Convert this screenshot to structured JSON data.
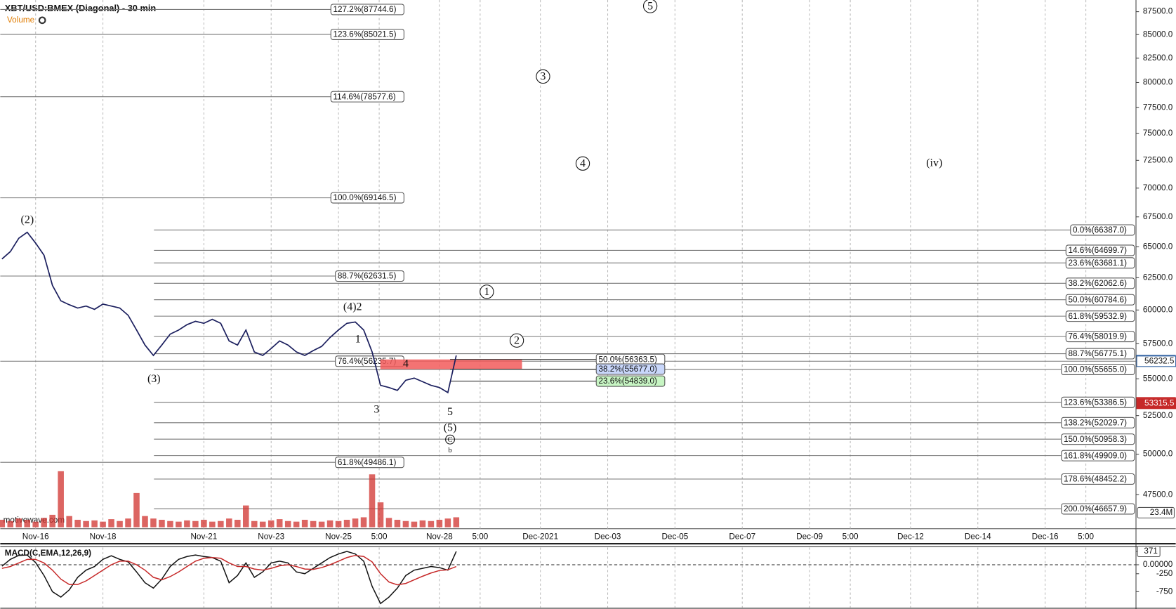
{
  "header": {
    "title": "XBT/USD:BMEX (Diagonal) - 30 min",
    "watermark": "motivewave.com"
  },
  "chart_data": [
    {
      "type": "line",
      "color": "#1b1f5e",
      "log_scale": true,
      "x": [
        15,
        15.25,
        15.5,
        15.75,
        16,
        16.25,
        16.5,
        16.75,
        17,
        17.25,
        17.5,
        17.75,
        18,
        18.25,
        18.5,
        18.75,
        19,
        19.25,
        19.5,
        19.75,
        20,
        20.25,
        20.5,
        20.75,
        21,
        21.25,
        21.5,
        21.75,
        22,
        22.25,
        22.5,
        22.75,
        23,
        23.25,
        23.5,
        23.75,
        24,
        24.25,
        24.5,
        24.75,
        25,
        25.25,
        25.5,
        25.75,
        26,
        26.25,
        26.5,
        26.75,
        27,
        27.25,
        27.5,
        27.75,
        28,
        28.25,
        28.5
      ],
      "values": [
        64000,
        64600,
        65700,
        66200,
        65300,
        64300,
        61900,
        60700,
        60400,
        60150,
        60300,
        60050,
        60450,
        60300,
        60150,
        59600,
        58500,
        57400,
        56650,
        57400,
        58200,
        58500,
        58900,
        59150,
        59000,
        59300,
        59000,
        57700,
        57400,
        58500,
        56900,
        56650,
        57150,
        57700,
        57400,
        56900,
        56650,
        57000,
        57300,
        57950,
        58500,
        59000,
        59100,
        58500,
        56900,
        54550,
        54400,
        54200,
        54900,
        55050,
        54800,
        54550,
        54400,
        54050,
        56650
      ],
      "xlim": [
        14.95,
        48.7
      ],
      "xticks": [
        {
          "value": 16,
          "label": "Nov-16"
        },
        {
          "value": 18,
          "label": "Nov-18"
        },
        {
          "value": 21,
          "label": "Nov-21"
        },
        {
          "value": 23,
          "label": "Nov-23"
        },
        {
          "value": 25,
          "label": "Nov-25"
        },
        {
          "value": 26.21,
          "label": "5:00"
        },
        {
          "value": 28,
          "label": "Nov-28"
        },
        {
          "value": 29.21,
          "label": "5:00"
        },
        {
          "value": 31,
          "label": "Dec-2021"
        },
        {
          "value": 33,
          "label": "Dec-03"
        },
        {
          "value": 35,
          "label": "Dec-05"
        },
        {
          "value": 37,
          "label": "Dec-07"
        },
        {
          "value": 39,
          "label": "Dec-09"
        },
        {
          "value": 40.21,
          "label": "5:00"
        },
        {
          "value": 42,
          "label": "Dec-12"
        },
        {
          "value": 44,
          "label": "Dec-14"
        },
        {
          "value": 46,
          "label": "Dec-16"
        },
        {
          "value": 47.21,
          "label": "5:00"
        }
      ],
      "ylim": [
        45500,
        88800
      ],
      "yticks": [
        {
          "value": 87500,
          "label": "87500.0"
        },
        {
          "value": 85000,
          "label": "85000.0"
        },
        {
          "value": 82500,
          "label": "82500.0"
        },
        {
          "value": 80000,
          "label": "80000.0"
        },
        {
          "value": 77500,
          "label": "77500.0"
        },
        {
          "value": 75000,
          "label": "75000.0"
        },
        {
          "value": 72500,
          "label": "72500.0"
        },
        {
          "value": 70000,
          "label": "70000.0"
        },
        {
          "value": 67500,
          "label": "67500.0"
        },
        {
          "value": 65000,
          "label": "65000.0"
        },
        {
          "value": 62500,
          "label": "62500.0"
        },
        {
          "value": 60000,
          "label": "60000.0"
        },
        {
          "value": 57500,
          "label": "57500.0"
        },
        {
          "value": 55000,
          "label": "55000.0"
        },
        {
          "value": 52500,
          "label": "52500.0"
        },
        {
          "value": 50000,
          "label": "50000.0"
        },
        {
          "value": 47500,
          "label": "47500.0"
        }
      ],
      "price_tags": [
        56232.5,
        53315.5
      ],
      "fib_left": [
        {
          "value": 87744.6,
          "label": "127.2%(87744.6)"
        },
        {
          "value": 85021.5,
          "label": "123.6%(85021.5)"
        },
        {
          "value": 78577.6,
          "label": "114.6%(78577.6)"
        },
        {
          "value": 69146.5,
          "label": "100.0%(69146.5)"
        },
        {
          "value": 62631.5,
          "label": "88.7%(62631.5)"
        },
        {
          "value": 56235.7,
          "label": "76.4%(56235.7)"
        },
        {
          "value": 49486.1,
          "label": "61.8%(49486.1)"
        }
      ],
      "fib_right": [
        {
          "value": 66387.0,
          "label": "0.0%(66387.0)"
        },
        {
          "value": 64699.7,
          "label": "14.6%(64699.7)"
        },
        {
          "value": 63681.1,
          "label": "23.6%(63681.1)"
        },
        {
          "value": 62062.6,
          "label": "38.2%(62062.6)"
        },
        {
          "value": 60784.6,
          "label": "50.0%(60784.6)"
        },
        {
          "value": 59532.9,
          "label": "61.8%(59532.9)"
        },
        {
          "value": 58019.9,
          "label": "76.4%(58019.9)"
        },
        {
          "value": 56775.1,
          "label": "88.7%(56775.1)"
        },
        {
          "value": 55655.0,
          "label": "100.0%(55655.0)"
        },
        {
          "value": 53386.5,
          "label": "123.6%(53386.5)"
        },
        {
          "value": 52029.7,
          "label": "138.2%(52029.7)"
        },
        {
          "value": 50958.3,
          "label": "150.0%(50958.3)"
        },
        {
          "value": 49909.0,
          "label": "161.8%(49909.0)"
        },
        {
          "value": 48452.2,
          "label": "178.6%(48452.2)"
        },
        {
          "value": 46657.9,
          "label": "200.0%(46657.9)"
        }
      ],
      "fib_mid": [
        {
          "value": 56363.5,
          "label": "50.0%(56363.5)"
        },
        {
          "value": 55677.0,
          "label": "38.2%(55677.0)"
        },
        {
          "value": 54839.0,
          "label": "23.6%(54839.0)"
        }
      ],
      "annotations": [
        "(2)",
        "(3)",
        "(4)2",
        "1",
        "4",
        "3",
        "5",
        "(5)",
        "C",
        "b",
        "1",
        "2",
        "3",
        "4",
        "5",
        "(iv)"
      ]
    },
    {
      "type": "bar",
      "title": "Volume",
      "color": "#d0312d",
      "x": [
        15,
        15.25,
        15.5,
        15.75,
        16,
        16.25,
        16.5,
        16.75,
        17,
        17.25,
        17.5,
        17.75,
        18,
        18.25,
        18.5,
        18.75,
        19,
        19.25,
        19.5,
        19.75,
        20,
        20.25,
        20.5,
        20.75,
        21,
        21.25,
        21.5,
        21.75,
        22,
        22.25,
        22.5,
        22.75,
        23,
        23.25,
        23.5,
        23.75,
        24,
        24.25,
        24.5,
        24.75,
        25,
        25.25,
        25.5,
        25.75,
        26,
        26.25,
        26.5,
        26.75,
        27,
        27.25,
        27.5,
        27.75,
        28,
        28.25,
        28.5
      ],
      "values": [
        12,
        10,
        14,
        12,
        9,
        15,
        20,
        90,
        18,
        12,
        10,
        11,
        9,
        13,
        10,
        14,
        55,
        18,
        14,
        12,
        10,
        9,
        11,
        10,
        12,
        9,
        10,
        14,
        12,
        35,
        10,
        9,
        11,
        13,
        10,
        9,
        12,
        10,
        9,
        11,
        10,
        12,
        14,
        16,
        85,
        40,
        15,
        12,
        10,
        9,
        11,
        10,
        12,
        14,
        16
      ],
      "ylim": [
        0,
        100
      ],
      "yticks": [
        {
          "value": 23.4,
          "label": "23.4M"
        }
      ]
    },
    {
      "type": "line",
      "title": "MACD(C,EMA,12,26,9)",
      "x": [
        15,
        15.25,
        15.5,
        15.75,
        16,
        16.25,
        16.5,
        16.75,
        17,
        17.25,
        17.5,
        17.75,
        18,
        18.25,
        18.5,
        18.75,
        19,
        19.25,
        19.5,
        19.75,
        20,
        20.25,
        20.5,
        20.75,
        21,
        21.25,
        21.5,
        21.75,
        22,
        22.25,
        22.5,
        22.75,
        23,
        23.25,
        23.5,
        23.75,
        24,
        24.25,
        24.5,
        24.75,
        25,
        25.25,
        25.5,
        25.75,
        26,
        26.25,
        26.5,
        26.75,
        27,
        27.25,
        27.5,
        27.75,
        28,
        28.25,
        28.5
      ],
      "series": [
        {
          "color": "#111111",
          "values": [
            -40,
            150,
            260,
            270,
            60,
            -300,
            -750,
            -900,
            -700,
            -350,
            -150,
            -50,
            150,
            250,
            150,
            80,
            -200,
            -500,
            -650,
            -400,
            -50,
            150,
            230,
            270,
            230,
            200,
            100,
            -500,
            -300,
            50,
            -350,
            -200,
            50,
            100,
            50,
            -200,
            -250,
            -100,
            50,
            200,
            300,
            370,
            300,
            100,
            -600,
            -1080,
            -900,
            -650,
            -300,
            -150,
            -100,
            -50,
            -80,
            -150,
            371
          ]
        },
        {
          "color": "#c62828",
          "values": [
            -100,
            -50,
            50,
            150,
            150,
            50,
            -150,
            -400,
            -550,
            -550,
            -450,
            -300,
            -150,
            0,
            100,
            100,
            0,
            -150,
            -350,
            -420,
            -330,
            -200,
            -50,
            100,
            180,
            200,
            180,
            50,
            -50,
            -50,
            -120,
            -150,
            -100,
            -30,
            0,
            -50,
            -120,
            -130,
            -80,
            0,
            100,
            200,
            260,
            230,
            80,
            -250,
            -480,
            -560,
            -520,
            -420,
            -320,
            -230,
            -160,
            -140,
            -50
          ]
        }
      ],
      "ylim": [
        -1190,
        480
      ],
      "yticks": [
        371,
        {
          "value": 0,
          "label": "0.00000"
        },
        -250,
        -750
      ]
    }
  ]
}
